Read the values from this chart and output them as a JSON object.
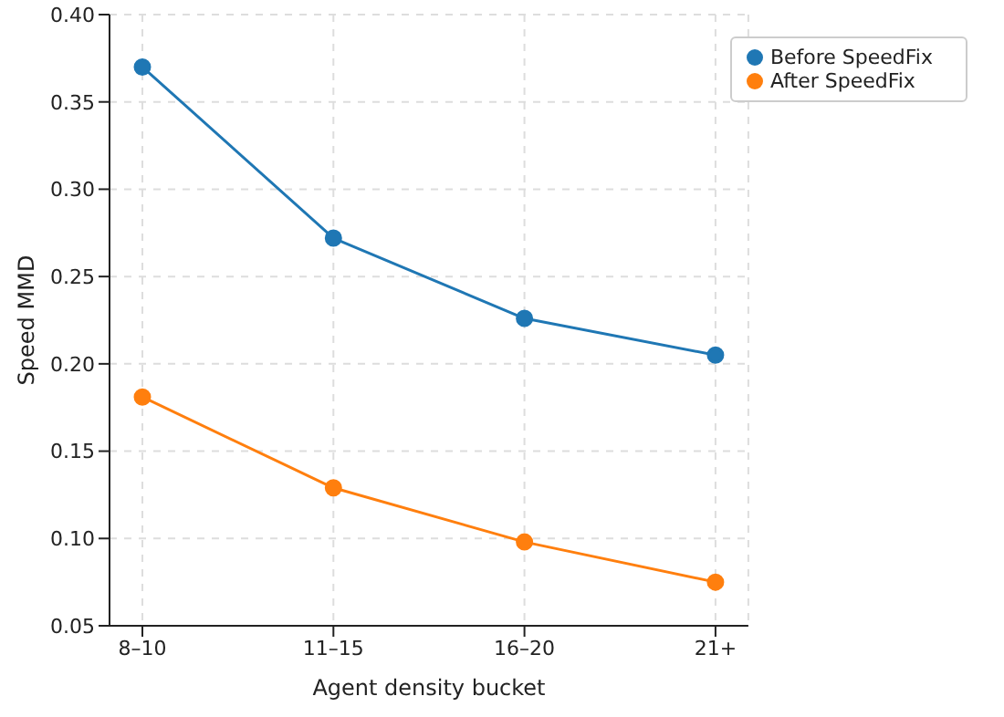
{
  "chart_data": {
    "type": "line",
    "xlabel": "Agent density bucket",
    "ylabel": "Speed MMD",
    "categories": [
      "8–10",
      "11–15",
      "16–20",
      "21+"
    ],
    "series": [
      {
        "name": "Before SpeedFix",
        "color": "#1f77b4",
        "values": [
          0.37,
          0.272,
          0.226,
          0.205
        ]
      },
      {
        "name": "After SpeedFix",
        "color": "#ff7f0e",
        "values": [
          0.181,
          0.129,
          0.098,
          0.075
        ]
      }
    ],
    "ylim": [
      0.05,
      0.4
    ],
    "yticks": [
      {
        "value": 0.05,
        "label": "0.05"
      },
      {
        "value": 0.1,
        "label": "0.10"
      },
      {
        "value": 0.15,
        "label": "0.15"
      },
      {
        "value": 0.2,
        "label": "0.20"
      },
      {
        "value": 0.25,
        "label": "0.25"
      },
      {
        "value": 0.3,
        "label": "0.30"
      },
      {
        "value": 0.35,
        "label": "0.35"
      },
      {
        "value": 0.4,
        "label": "0.40"
      }
    ],
    "grid": true,
    "legend": "top right",
    "marker": "circle",
    "line_style": "solid"
  }
}
